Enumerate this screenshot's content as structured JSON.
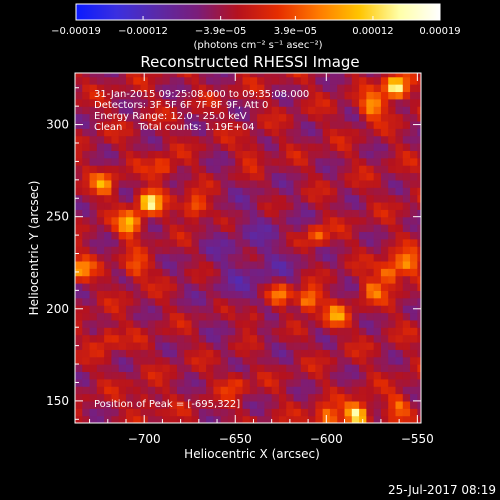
{
  "chart_data": {
    "type": "heatmap",
    "title": "Reconstructed RHESSI Image",
    "xlabel": "Heliocentric X (arcsec)",
    "ylabel": "Heliocentric Y (arcsec)",
    "xlim": [
      -738,
      -548
    ],
    "ylim": [
      138,
      328
    ],
    "xticks": [
      -700,
      -650,
      -600,
      -550
    ],
    "xtick_labels": [
      "−700",
      "−650",
      "−600",
      "−550"
    ],
    "yticks": [
      150,
      200,
      250,
      300
    ],
    "ytick_labels": [
      "150",
      "200",
      "250",
      "300"
    ],
    "colorbar": {
      "range": [
        -0.00019,
        0.00019
      ],
      "ticks": [
        -0.00019,
        -0.00012,
        -3.9e-05,
        3.9e-05,
        0.00012,
        0.00019
      ],
      "tick_labels": [
        "−0.00019",
        "−0.00012",
        "−3.9e−05",
        "3.9e−05",
        "0.00012",
        "0.00019"
      ],
      "unit_label": "(photons cm⁻² s⁻¹ asec⁻²)",
      "colors": [
        "#0a1aff",
        "#3a2fe0",
        "#5a2aa8",
        "#7a1d7a",
        "#b5121e",
        "#e62d00",
        "#ff7a00",
        "#ffc400",
        "#ffffa8",
        "#ffffff"
      ]
    },
    "info_lines": [
      "31-Jan-2015 09:25:08.000 to 09:35:08.000",
      "Detectors: 3F 5F 6F 7F 8F 9F, Att 0",
      "Energy Range: 12.0 - 25.0 keV",
      "Clean     Total counts: 1.19E+04"
    ],
    "peak_label": "Position of Peak = [-695,322]",
    "peak_position": [
      -695,
      322
    ],
    "hotspots": [
      {
        "x": -697,
        "y": 258,
        "value": 0.00016
      },
      {
        "x": -708,
        "y": 246,
        "value": 0.00014
      },
      {
        "x": -672,
        "y": 255,
        "value": 0.00012
      },
      {
        "x": -722,
        "y": 268,
        "value": 0.0001
      },
      {
        "x": -735,
        "y": 222,
        "value": 0.0001
      },
      {
        "x": -705,
        "y": 222,
        "value": 8e-05
      },
      {
        "x": -690,
        "y": 276,
        "value": 8e-05
      },
      {
        "x": -610,
        "y": 205,
        "value": 0.00015
      },
      {
        "x": -625,
        "y": 208,
        "value": 0.00011
      },
      {
        "x": -595,
        "y": 196,
        "value": 0.0001
      },
      {
        "x": -640,
        "y": 195,
        "value": 8e-05
      },
      {
        "x": -605,
        "y": 240,
        "value": 9e-05
      },
      {
        "x": -565,
        "y": 220,
        "value": 0.00012
      },
      {
        "x": -555,
        "y": 225,
        "value": 0.0001
      },
      {
        "x": -575,
        "y": 210,
        "value": 8e-05
      },
      {
        "x": -562,
        "y": 320,
        "value": 0.00019
      },
      {
        "x": -575,
        "y": 310,
        "value": 0.00012
      },
      {
        "x": -583,
        "y": 143,
        "value": 0.00019
      },
      {
        "x": -600,
        "y": 140,
        "value": 0.00012
      },
      {
        "x": -560,
        "y": 148,
        "value": 8e-05
      },
      {
        "x": -650,
        "y": 160,
        "value": 6e-05
      },
      {
        "x": -640,
        "y": 285,
        "value": 5e-05
      },
      {
        "x": -720,
        "y": 185,
        "value": 6e-05
      },
      {
        "x": -700,
        "y": 150,
        "value": 5e-05
      }
    ]
  },
  "timestamp": "25-Jul-2017 08:19"
}
